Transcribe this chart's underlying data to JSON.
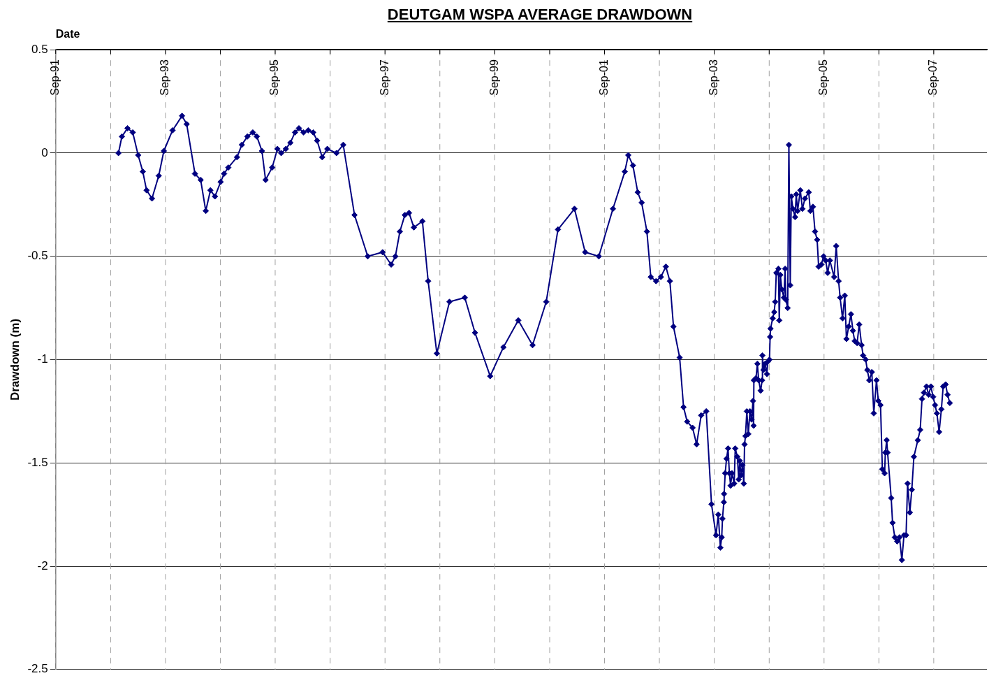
{
  "chart_data": {
    "type": "line",
    "title": "DEUTGAM WSPA AVERAGE DRAWDOWN",
    "xlabel": "Date",
    "ylabel": "Drawdown (m)",
    "xlim": [
      "1991-09-01",
      "2008-08-20"
    ],
    "xticks": [
      {
        "value": "1991-09-01",
        "label": "Sep-91"
      },
      {
        "value": "1992-09-01",
        "label": null
      },
      {
        "value": "1993-09-01",
        "label": "Sep-93"
      },
      {
        "value": "1994-09-01",
        "label": null
      },
      {
        "value": "1995-09-01",
        "label": "Sep-95"
      },
      {
        "value": "1996-09-01",
        "label": null
      },
      {
        "value": "1997-09-01",
        "label": "Sep-97"
      },
      {
        "value": "1998-09-01",
        "label": null
      },
      {
        "value": "1999-09-01",
        "label": "Sep-99"
      },
      {
        "value": "2000-09-01",
        "label": null
      },
      {
        "value": "2001-09-01",
        "label": "Sep-01"
      },
      {
        "value": "2002-09-01",
        "label": null
      },
      {
        "value": "2003-09-01",
        "label": "Sep-03"
      },
      {
        "value": "2004-09-01",
        "label": null
      },
      {
        "value": "2005-09-01",
        "label": "Sep-05"
      },
      {
        "value": "2006-09-01",
        "label": null
      },
      {
        "value": "2007-09-01",
        "label": "Sep-07"
      }
    ],
    "ylim": [
      -2.5,
      0.5
    ],
    "yticks": [
      0.5,
      0,
      -0.5,
      -1,
      -1.5,
      -2,
      -2.5
    ],
    "grid": true,
    "marker": "diamond",
    "line_style": "solid",
    "x": [
      "1992-10-23",
      "1992-11-15",
      "1992-12-22",
      "1993-01-26",
      "1993-03-03",
      "1993-04-03",
      "1993-04-28",
      "1993-06-03",
      "1993-07-18",
      "1993-08-21",
      "1993-10-18",
      "1993-12-20",
      "1994-01-20",
      "1994-03-16",
      "1994-04-23",
      "1994-05-27",
      "1994-06-27",
      "1994-07-27",
      "1994-09-03",
      "1994-09-26",
      "1994-10-24",
      "1994-12-21",
      "1995-01-22",
      "1995-02-28",
      "1995-04-05",
      "1995-05-02",
      "1995-06-05",
      "1995-06-29",
      "1995-08-12",
      "1995-09-16",
      "1995-10-11",
      "1995-11-11",
      "1995-12-11",
      "1996-01-11",
      "1996-02-06",
      "1996-03-08",
      "1996-04-08",
      "1996-05-11",
      "1996-06-06",
      "1996-07-10",
      "1996-08-13",
      "1996-10-13",
      "1996-11-27",
      "1997-02-10",
      "1997-05-09",
      "1997-08-16",
      "1997-10-12",
      "1997-11-09",
      "1997-12-09",
      "1998-01-11",
      "1998-02-08",
      "1998-03-12",
      "1998-05-08",
      "1998-06-15",
      "1998-08-12",
      "1998-11-04",
      "1999-02-14",
      "1999-04-23",
      "1999-08-02",
      "1999-10-29",
      "2000-02-05",
      "2000-05-10",
      "2000-08-09",
      "2000-10-26",
      "2001-02-13",
      "2001-04-25",
      "2001-07-25",
      "2001-10-27",
      "2002-01-14",
      "2002-02-06",
      "2002-03-09",
      "2002-04-10",
      "2002-05-06",
      "2002-06-10",
      "2002-07-06",
      "2002-08-10",
      "2002-09-11",
      "2002-10-14",
      "2002-11-10",
      "2002-12-04",
      "2003-01-14",
      "2003-02-09",
      "2003-03-05",
      "2003-04-10",
      "2003-05-07",
      "2003-06-06",
      "2003-07-10",
      "2003-08-14",
      "2003-09-13",
      "2003-09-28",
      "2003-10-12",
      "2003-10-21",
      "2003-10-26",
      "2003-11-04",
      "2003-11-06",
      "2003-11-13",
      "2003-11-22",
      "2003-12-02",
      "2003-12-11",
      "2003-12-19",
      "2003-12-28",
      "2004-01-12",
      "2004-01-19",
      "2004-02-02",
      "2004-02-11",
      "2004-02-18",
      "2004-02-26",
      "2004-03-07",
      "2004-03-16",
      "2004-03-21",
      "2004-03-27",
      "2004-04-05",
      "2004-04-15",
      "2004-04-26",
      "2004-05-07",
      "2004-05-16",
      "2004-05-20",
      "2004-05-22",
      "2004-06-05",
      "2004-06-14",
      "2004-06-23",
      "2004-07-06",
      "2004-07-16",
      "2004-07-18",
      "2004-07-25",
      "2004-08-05",
      "2004-08-17",
      "2004-08-22",
      "2004-09-03",
      "2004-09-07",
      "2004-09-10",
      "2004-09-24",
      "2004-10-04",
      "2004-10-11",
      "2004-10-18",
      "2004-11-01",
      "2004-11-07",
      "2004-11-14",
      "2004-11-24",
      "2004-12-08",
      "2004-12-16",
      "2004-12-21",
      "2005-01-02",
      "2005-01-10",
      "2005-01-19",
      "2005-01-26",
      "2005-02-06",
      "2005-02-20",
      "2005-02-28",
      "2005-03-09",
      "2005-03-27",
      "2005-04-10",
      "2005-04-27",
      "2005-05-22",
      "2005-06-02",
      "2005-06-19",
      "2005-07-03",
      "2005-07-17",
      "2005-07-27",
      "2005-08-14",
      "2005-08-29",
      "2005-09-12",
      "2005-09-25",
      "2005-10-10",
      "2005-11-07",
      "2005-11-21",
      "2005-12-07",
      "2005-12-17",
      "2006-01-02",
      "2006-01-17",
      "2006-01-28",
      "2006-02-12",
      "2006-02-27",
      "2006-03-12",
      "2006-03-24",
      "2006-04-09",
      "2006-04-23",
      "2006-05-09",
      "2006-05-19",
      "2006-06-05",
      "2006-06-16",
      "2006-06-29",
      "2006-07-16",
      "2006-07-29",
      "2006-08-16",
      "2006-08-28",
      "2006-09-12",
      "2006-09-24",
      "2006-10-09",
      "2006-10-14",
      "2006-10-23",
      "2006-10-29",
      "2006-11-22",
      "2006-12-01",
      "2006-12-16",
      "2007-01-01",
      "2007-01-16",
      "2007-02-01",
      "2007-02-15",
      "2007-03-01",
      "2007-03-11",
      "2007-03-26",
      "2007-04-08",
      "2007-04-22",
      "2007-05-18",
      "2007-06-03",
      "2007-06-15",
      "2007-06-28",
      "2007-07-15",
      "2007-07-29",
      "2007-08-13",
      "2007-08-28",
      "2007-09-10",
      "2007-09-22",
      "2007-10-07",
      "2007-10-22",
      "2007-11-03",
      "2007-11-19",
      "2007-12-02",
      "2007-12-17"
    ],
    "series": [
      {
        "color": "#000080",
        "values": [
          0,
          0.08,
          0.12,
          0.1,
          -0.01,
          -0.09,
          -0.18,
          -0.22,
          -0.11,
          0.01,
          0.11,
          0.18,
          0.14,
          -0.1,
          -0.13,
          -0.28,
          -0.18,
          -0.21,
          -0.14,
          -0.1,
          -0.07,
          -0.02,
          0.04,
          0.08,
          0.1,
          0.08,
          0.01,
          -0.13,
          -0.07,
          0.02,
          0,
          0.02,
          0.05,
          0.1,
          0.12,
          0.1,
          0.11,
          0.1,
          0.06,
          -0.02,
          0.02,
          0,
          0.04,
          -0.3,
          -0.5,
          -0.48,
          -0.54,
          -0.5,
          -0.38,
          -0.3,
          -0.29,
          -0.36,
          -0.33,
          -0.62,
          -0.97,
          -0.72,
          -0.7,
          -0.87,
          -1.08,
          -0.94,
          -0.81,
          -0.93,
          -0.72,
          -0.37,
          -0.27,
          -0.48,
          -0.5,
          -0.27,
          -0.09,
          -0.01,
          -0.06,
          -0.19,
          -0.24,
          -0.38,
          -0.6,
          -0.62,
          -0.6,
          -0.55,
          -0.62,
          -0.84,
          -0.99,
          -1.23,
          -1.3,
          -1.33,
          -1.41,
          -1.27,
          -1.25,
          -1.7,
          -1.85,
          -1.75,
          -1.91,
          -1.86,
          -1.77,
          -1.69,
          -1.65,
          -1.55,
          -1.48,
          -1.43,
          -1.55,
          -1.61,
          -1.55,
          -1.6,
          -1.43,
          -1.47,
          -1.58,
          -1.49,
          -1.56,
          -1.51,
          -1.6,
          -1.41,
          -1.37,
          -1.25,
          -1.36,
          -1.25,
          -1.29,
          -1.2,
          -1.32,
          -1.1,
          -1.09,
          -1.02,
          -1.1,
          -1.15,
          -1.1,
          -0.98,
          -1.05,
          -1.02,
          -1.07,
          -1.01,
          -1,
          -0.89,
          -0.85,
          -0.8,
          -0.77,
          -0.72,
          -0.58,
          -0.56,
          -0.81,
          -0.59,
          -0.66,
          -0.7,
          -0.56,
          -0.71,
          -0.75,
          0.04,
          -0.64,
          -0.21,
          -0.27,
          -0.31,
          -0.2,
          -0.28,
          -0.18,
          -0.27,
          -0.22,
          -0.19,
          -0.28,
          -0.26,
          -0.38,
          -0.42,
          -0.55,
          -0.54,
          -0.5,
          -0.52,
          -0.58,
          -0.52,
          -0.6,
          -0.45,
          -0.62,
          -0.7,
          -0.8,
          -0.69,
          -0.9,
          -0.84,
          -0.78,
          -0.86,
          -0.91,
          -0.92,
          -0.83,
          -0.93,
          -0.98,
          -1,
          -1.05,
          -1.1,
          -1.06,
          -1.26,
          -1.1,
          -1.2,
          -1.22,
          -1.53,
          -1.55,
          -1.45,
          -1.39,
          -1.45,
          -1.67,
          -1.79,
          -1.86,
          -1.88,
          -1.86,
          -1.97,
          -1.85,
          -1.85,
          -1.6,
          -1.74,
          -1.63,
          -1.47,
          -1.39,
          -1.34,
          -1.19,
          -1.16,
          -1.13,
          -1.17,
          -1.13,
          -1.18,
          -1.22,
          -1.26,
          -1.35,
          -1.24,
          -1.13,
          -1.12,
          -1.17,
          -1.21
        ]
      }
    ]
  }
}
